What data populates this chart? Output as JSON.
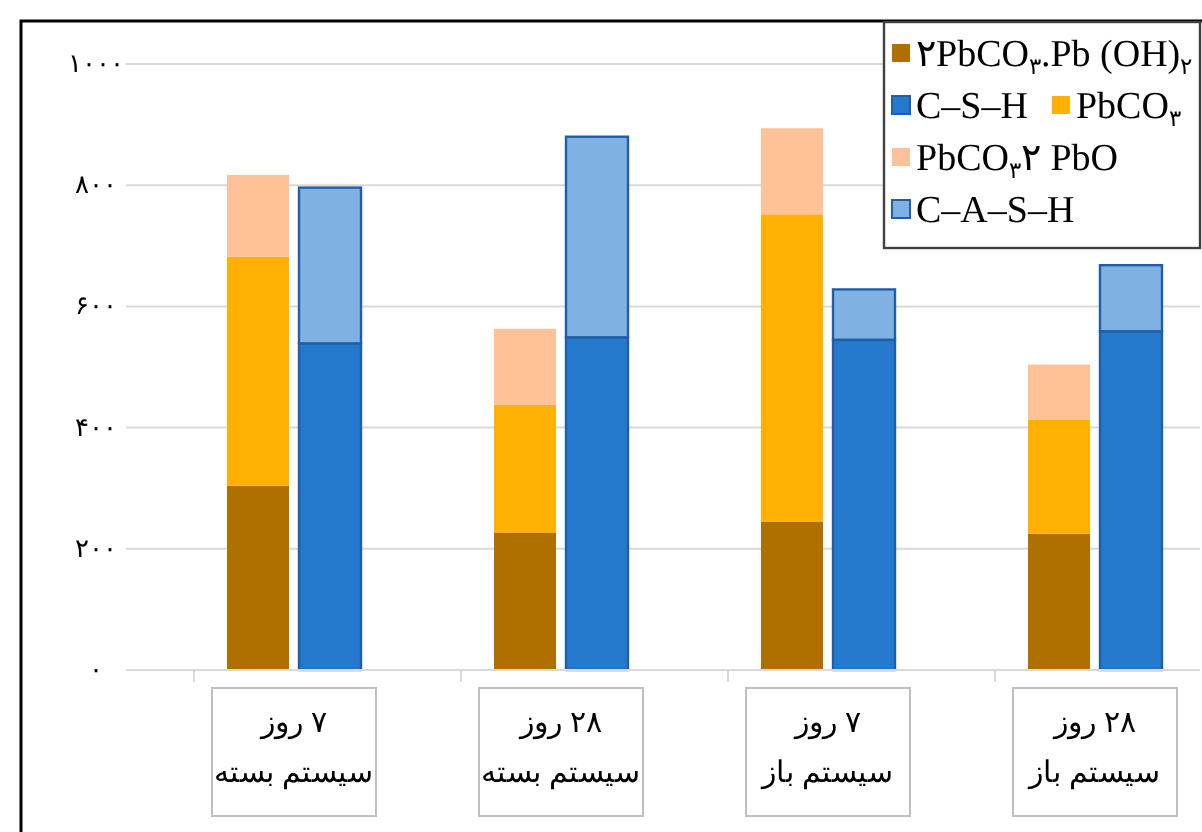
{
  "chart_data": {
    "type": "bar",
    "categories": [
      "۷ روز\nسیستم بسته",
      "۲۸ روز\nسیستم بسته",
      "۷ روز\nسیستم باز",
      "۲۸ روز\nسیستم باز"
    ],
    "series": [
      {
        "name": "۲PbCO$_{۳}$.Pb (OH)$_{۲}$",
        "color": "#b07000",
        "base": [
          0,
          0,
          0,
          0
        ],
        "values": [
          304,
          227,
          245,
          225
        ]
      },
      {
        "name": "C–S–H",
        "color": "#2479cc",
        "base": [
          0,
          0,
          0,
          0
        ],
        "values": [
          539,
          549,
          545,
          559
        ]
      },
      {
        "name": "PbCO$_{۳}$",
        "color": "#ffb000",
        "base": [
          304,
          227,
          245,
          225
        ],
        "values": [
          378,
          211,
          507,
          188
        ]
      },
      {
        "name": "PbCO$_{۳}$۲ PbO",
        "color": "#ffc197",
        "base": [
          682,
          438,
          752,
          413
        ],
        "values": [
          135,
          125,
          142,
          91
        ]
      },
      {
        "name": "C–A–S–H",
        "color": "#7fb2e3",
        "base": [
          539,
          549,
          545,
          559
        ],
        "values": [
          257,
          331,
          83,
          109
        ]
      }
    ],
    "ylim": [
      0,
      1000
    ],
    "yticks": [
      {
        "value": 0,
        "label": "۰"
      },
      {
        "value": 200,
        "label": "۲۰۰"
      },
      {
        "value": 400,
        "label": "۴۰۰"
      },
      {
        "value": 600,
        "label": "۶۰۰"
      },
      {
        "value": 800,
        "label": "۸۰۰"
      },
      {
        "value": 1000,
        "label": "۱۰۰۰"
      }
    ],
    "grid": "y",
    "legend": "top right"
  }
}
